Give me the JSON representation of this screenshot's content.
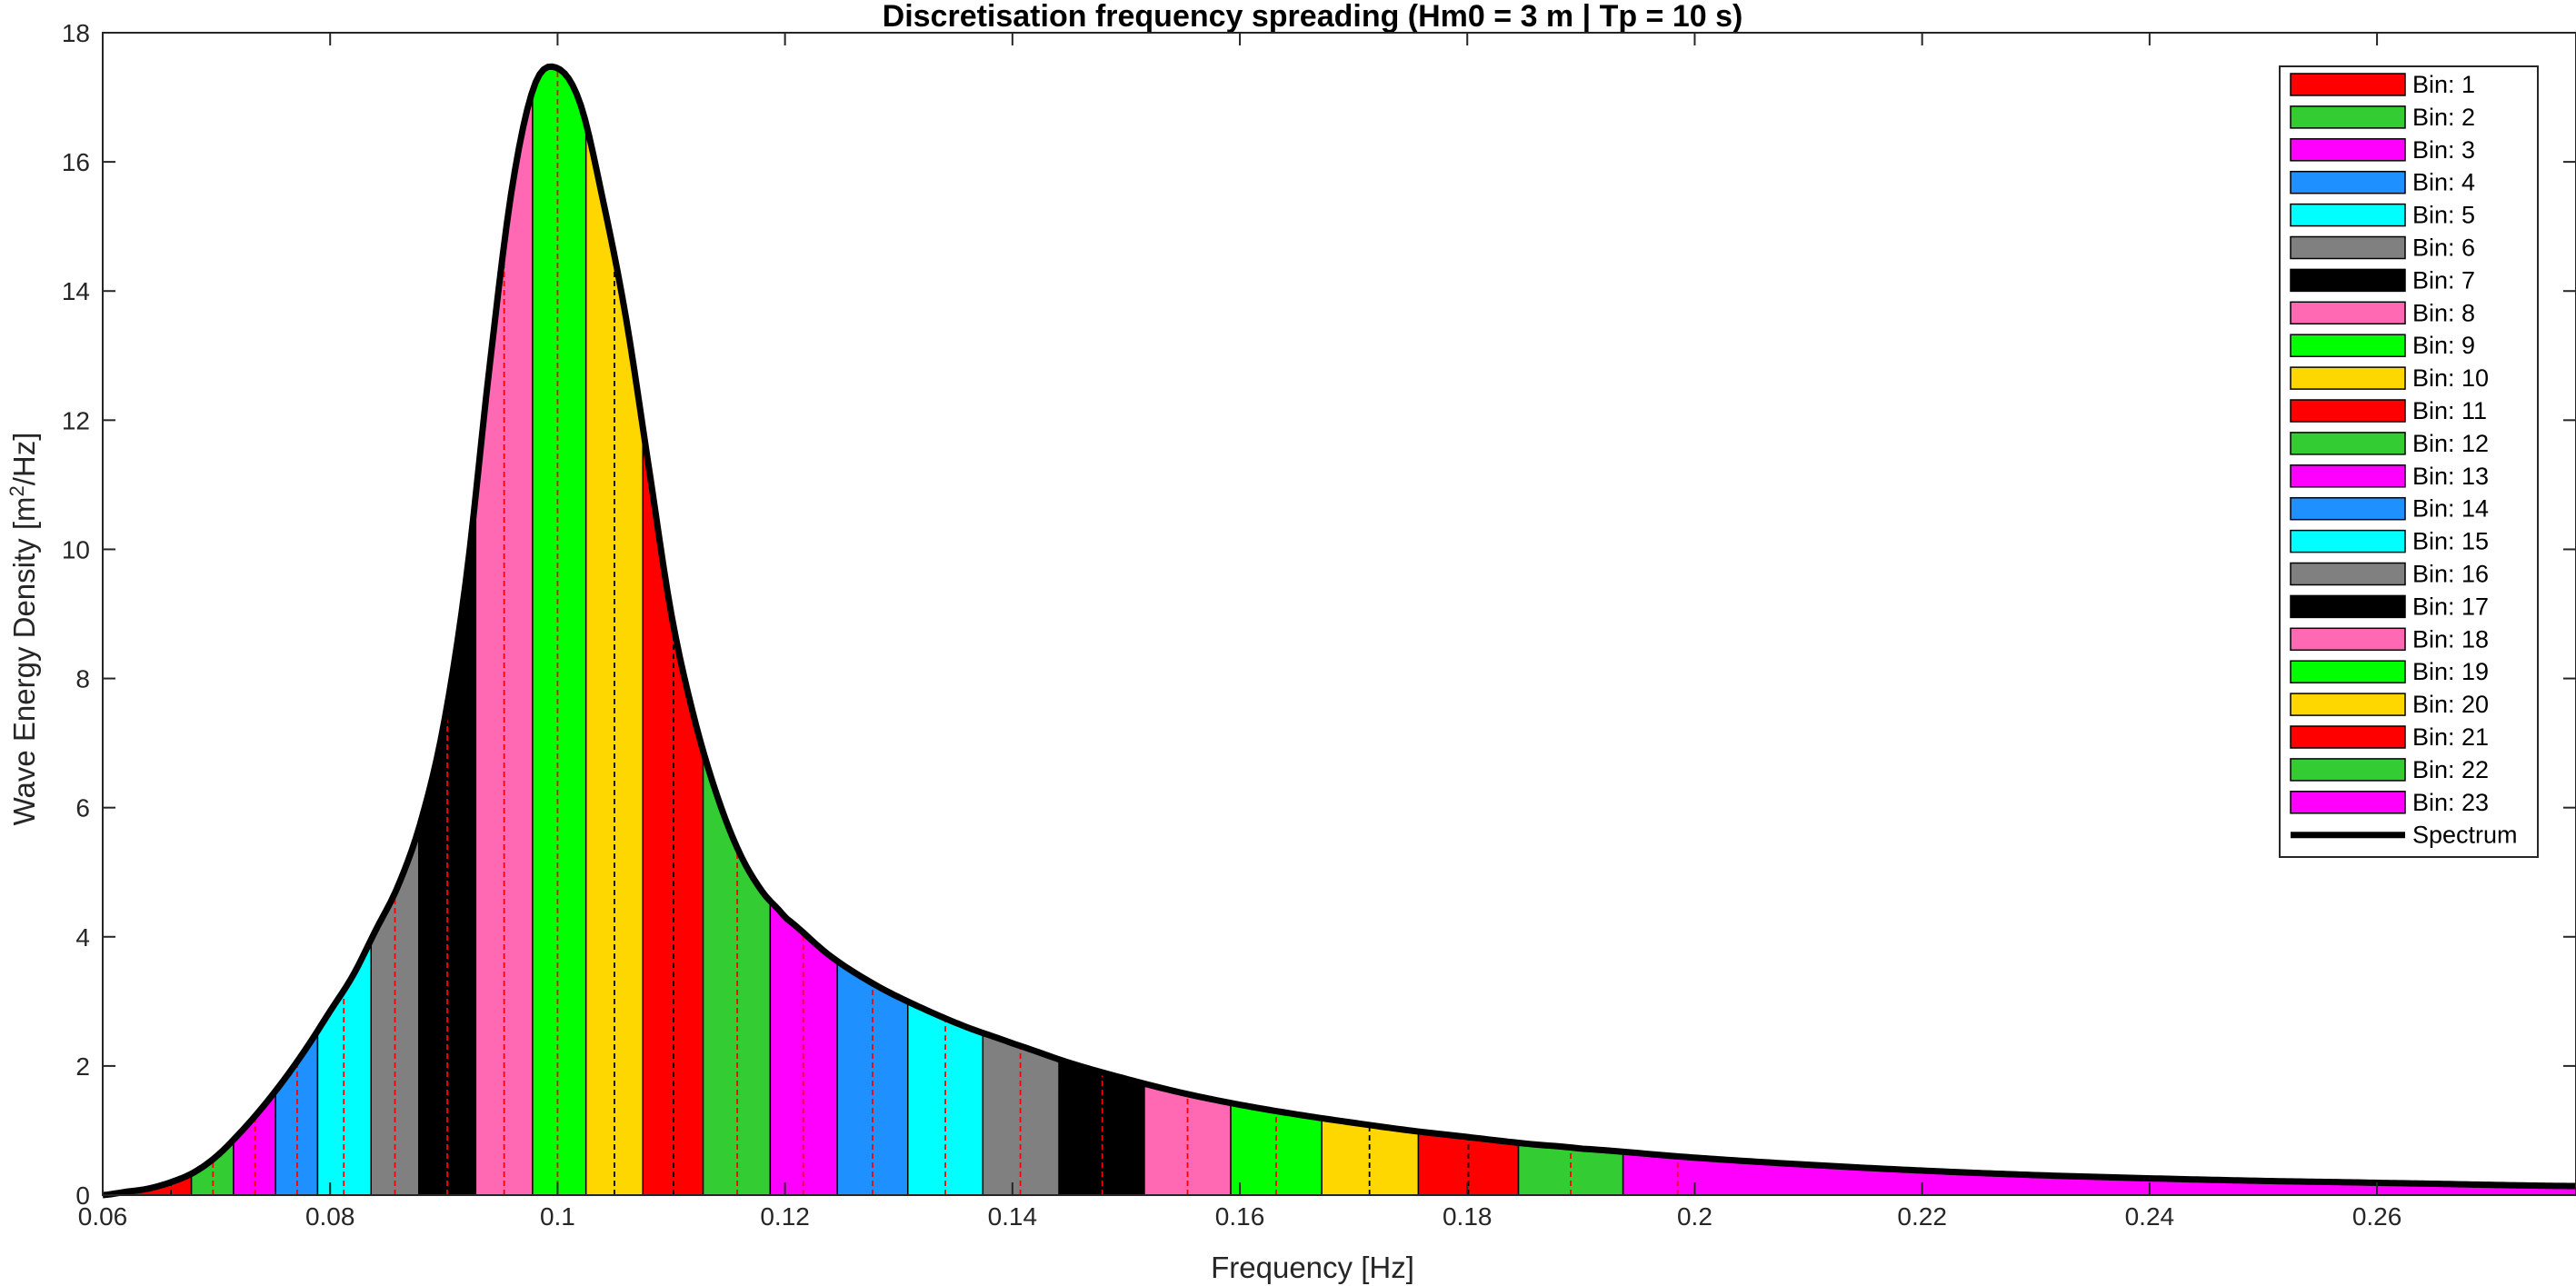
{
  "chart_data": {
    "type": "area",
    "title": "Discretisation frequency spreading (Hm0 = 3 m | Tp = 10 s)",
    "xlabel": "Frequency [Hz]",
    "ylabel_main": "Wave Energy Density [m",
    "ylabel_sup": "2",
    "ylabel_tail": "/Hz]",
    "xlim": [
      0.06,
      0.2775
    ],
    "ylim": [
      0,
      18
    ],
    "xticks": [
      0.06,
      0.08,
      0.1,
      0.12,
      0.14,
      0.16,
      0.18,
      0.2,
      0.22,
      0.24,
      0.26
    ],
    "xtick_labels": [
      "0.06",
      "0.08",
      "0.1",
      "0.12",
      "0.14",
      "0.16",
      "0.18",
      "0.2",
      "0.22",
      "0.24",
      "0.26"
    ],
    "yticks": [
      0,
      2,
      4,
      6,
      8,
      10,
      12,
      14,
      16,
      18
    ],
    "ytick_labels": [
      "0",
      "2",
      "4",
      "6",
      "8",
      "10",
      "12",
      "14",
      "16",
      "18"
    ],
    "grid": false,
    "legend_position": "top-right",
    "spectrum": {
      "name": "Spectrum",
      "f": [
        0.06,
        0.062,
        0.064,
        0.066,
        0.068,
        0.07,
        0.072,
        0.074,
        0.076,
        0.078,
        0.08,
        0.082,
        0.084,
        0.086,
        0.088,
        0.09,
        0.092,
        0.094,
        0.096,
        0.098,
        0.1,
        0.102,
        0.104,
        0.106,
        0.108,
        0.11,
        0.112,
        0.114,
        0.116,
        0.118,
        0.12,
        0.124,
        0.128,
        0.132,
        0.136,
        0.14,
        0.145,
        0.15,
        0.155,
        0.16,
        0.165,
        0.17,
        0.175,
        0.18,
        0.185,
        0.19,
        0.2,
        0.21,
        0.22,
        0.23,
        0.24,
        0.25,
        0.26,
        0.2775
      ],
      "S": [
        0.0,
        0.05,
        0.1,
        0.2,
        0.35,
        0.6,
        0.95,
        1.35,
        1.8,
        2.3,
        2.85,
        3.4,
        4.1,
        4.8,
        5.8,
        7.3,
        9.6,
        12.8,
        15.6,
        17.2,
        17.45,
        16.9,
        15.4,
        13.6,
        11.3,
        9.0,
        7.4,
        6.2,
        5.3,
        4.7,
        4.3,
        3.7,
        3.25,
        2.9,
        2.6,
        2.35,
        2.05,
        1.8,
        1.58,
        1.4,
        1.25,
        1.12,
        1.0,
        0.9,
        0.8,
        0.72,
        0.58,
        0.47,
        0.38,
        0.31,
        0.26,
        0.22,
        0.19,
        0.14
      ]
    },
    "bins": [
      {
        "name": "Bin: 1",
        "color": "#ff0000",
        "f0": 0.06,
        "f1": 0.0678,
        "fc": 0.066
      },
      {
        "name": "Bin: 2",
        "color": "#33cc33",
        "f0": 0.0678,
        "f1": 0.0715,
        "fc": 0.0697
      },
      {
        "name": "Bin: 3",
        "color": "#ff00ff",
        "f0": 0.0715,
        "f1": 0.0752,
        "fc": 0.0734
      },
      {
        "name": "Bin: 4",
        "color": "#1e90ff",
        "f0": 0.0752,
        "f1": 0.0789,
        "fc": 0.0771
      },
      {
        "name": "Bin: 5",
        "color": "#00ffff",
        "f0": 0.0789,
        "f1": 0.0836,
        "fc": 0.0812
      },
      {
        "name": "Bin: 6",
        "color": "#808080",
        "f0": 0.0836,
        "f1": 0.0878,
        "fc": 0.0857
      },
      {
        "name": "Bin: 7",
        "color": "#000000",
        "f0": 0.0878,
        "f1": 0.0928,
        "fc": 0.0903
      },
      {
        "name": "Bin: 8",
        "color": "#ff69b4",
        "f0": 0.0928,
        "f1": 0.0978,
        "fc": 0.0953
      },
      {
        "name": "Bin: 9",
        "color": "#00ff00",
        "f0": 0.0978,
        "f1": 0.1025,
        "fc": 0.1
      },
      {
        "name": "Bin: 10",
        "color": "#ffd700",
        "f0": 0.1025,
        "f1": 0.1075,
        "fc": 0.105
      },
      {
        "name": "Bin: 11",
        "color": "#ff0000",
        "f0": 0.1075,
        "f1": 0.1128,
        "fc": 0.1102
      },
      {
        "name": "Bin: 12",
        "color": "#33cc33",
        "f0": 0.1128,
        "f1": 0.1187,
        "fc": 0.1158
      },
      {
        "name": "Bin: 13",
        "color": "#ff00ff",
        "f0": 0.1187,
        "f1": 0.1246,
        "fc": 0.1216
      },
      {
        "name": "Bin: 14",
        "color": "#1e90ff",
        "f0": 0.1246,
        "f1": 0.1308,
        "fc": 0.1277
      },
      {
        "name": "Bin: 15",
        "color": "#00ffff",
        "f0": 0.1308,
        "f1": 0.1374,
        "fc": 0.1341
      },
      {
        "name": "Bin: 16",
        "color": "#808080",
        "f0": 0.1374,
        "f1": 0.1441,
        "fc": 0.1407
      },
      {
        "name": "Bin: 17",
        "color": "#000000",
        "f0": 0.1441,
        "f1": 0.1516,
        "fc": 0.1479
      },
      {
        "name": "Bin: 18",
        "color": "#ff69b4",
        "f0": 0.1516,
        "f1": 0.1592,
        "fc": 0.1554
      },
      {
        "name": "Bin: 19",
        "color": "#00ff00",
        "f0": 0.1592,
        "f1": 0.1672,
        "fc": 0.1632
      },
      {
        "name": "Bin: 20",
        "color": "#ffd700",
        "f0": 0.1672,
        "f1": 0.1757,
        "fc": 0.1714
      },
      {
        "name": "Bin: 21",
        "color": "#ff0000",
        "f0": 0.1757,
        "f1": 0.1845,
        "fc": 0.1801
      },
      {
        "name": "Bin: 22",
        "color": "#33cc33",
        "f0": 0.1845,
        "f1": 0.1937,
        "fc": 0.1891
      },
      {
        "name": "Bin: 23",
        "color": "#ff00ff",
        "f0": 0.1937,
        "f1": 0.2775,
        "fc": 0.1985
      }
    ]
  }
}
